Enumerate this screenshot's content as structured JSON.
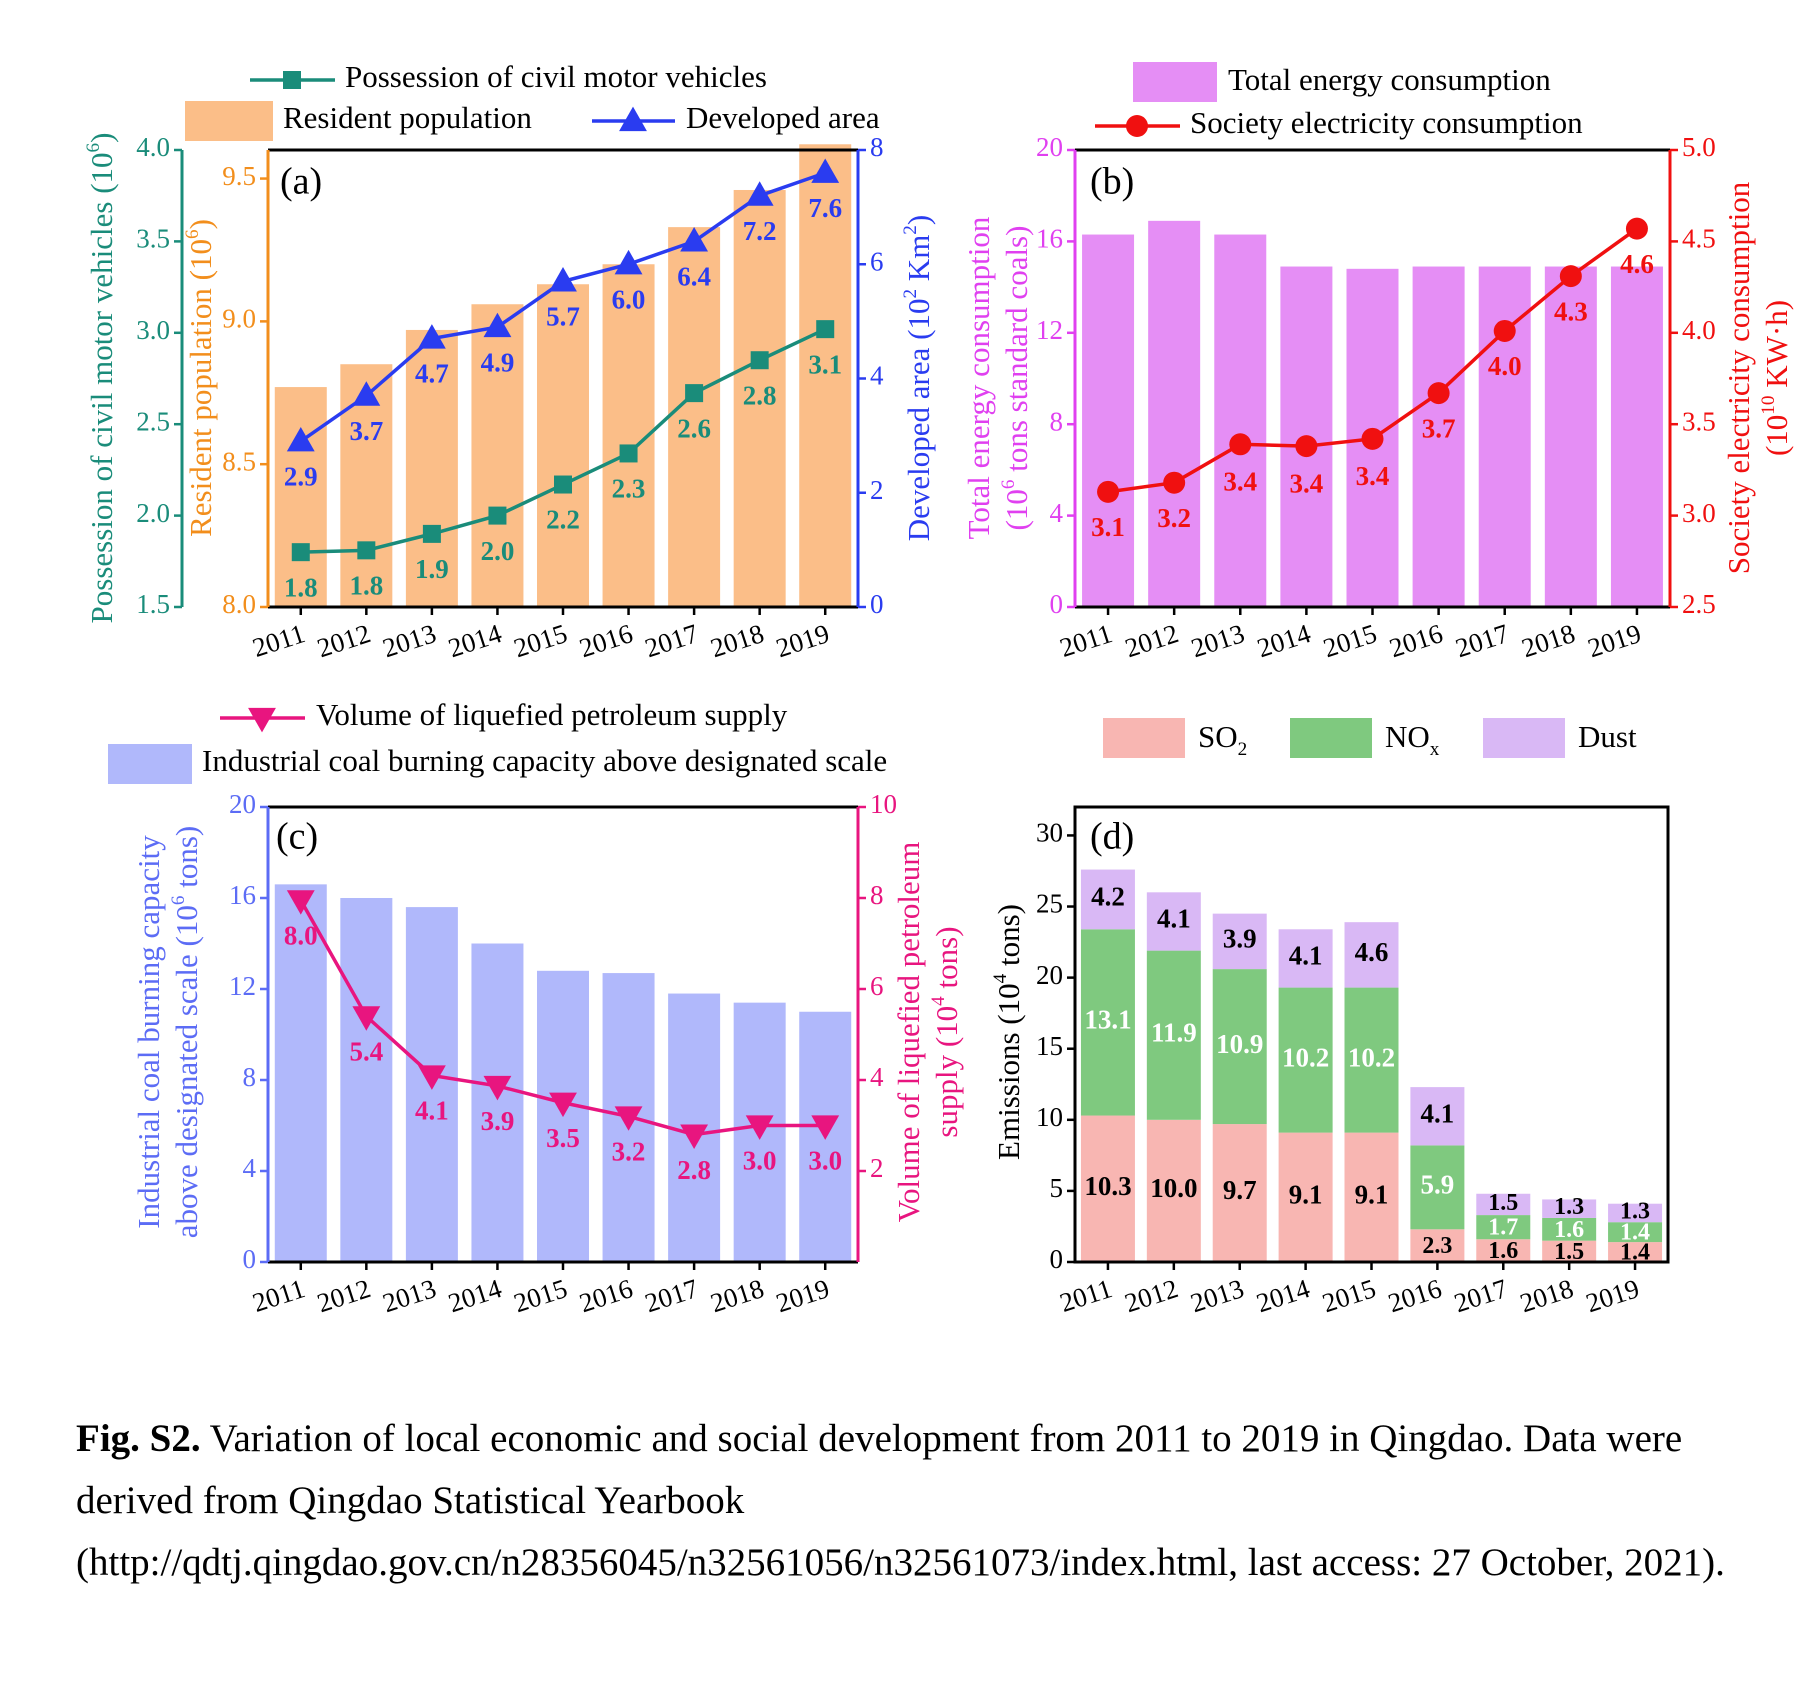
{
  "chart_data": [
    {
      "panel": "(a)",
      "type": "bar",
      "categories": [
        "2011",
        "2012",
        "2013",
        "2014",
        "2015",
        "2016",
        "2017",
        "2018",
        "2019"
      ],
      "series": [
        {
          "name": "Resident population",
          "kind": "bar",
          "axis": "left_inner",
          "color": "#fbbe88",
          "values": [
            8.77,
            8.85,
            8.97,
            9.06,
            9.13,
            9.2,
            9.33,
            9.46,
            9.62
          ]
        },
        {
          "name": "Possession of civil motor vehicles",
          "kind": "line",
          "marker": "square",
          "axis": "left_outer",
          "color": "#1a8c7a",
          "values": [
            1.8,
            1.8,
            1.9,
            2.0,
            2.2,
            2.3,
            2.6,
            2.8,
            3.1
          ],
          "plot_values": [
            1.8,
            1.81,
            1.9,
            2.0,
            2.17,
            2.34,
            2.67,
            2.85,
            3.02
          ]
        },
        {
          "name": "Developed area",
          "kind": "line",
          "marker": "triangle-up",
          "axis": "right",
          "color": "#2a3cf0",
          "values": [
            2.9,
            3.7,
            4.7,
            4.9,
            5.7,
            6.0,
            6.4,
            7.2,
            7.6
          ]
        }
      ],
      "axes": {
        "left_outer": {
          "label": "Possession of civil motor vehicles (10",
          "sup": "6",
          "tail": ")",
          "ylim": [
            1.5,
            4.0
          ],
          "ticks": [
            "1.5",
            "2.0",
            "2.5",
            "3.0",
            "3.5",
            "4.0"
          ],
          "color": "#1a8c7a"
        },
        "left_inner": {
          "label": "Resident population (10",
          "sup": "6",
          "tail": ")",
          "ylim": [
            8.0,
            9.6
          ],
          "ticks": [
            "8.0",
            "8.5",
            "9.0",
            "9.5"
          ],
          "color": "#f28e1c"
        },
        "right": {
          "label": "Developed area (10",
          "sup": "2",
          "tail": " Km",
          "sup2": "2",
          "tail2": ")",
          "ylim": [
            0,
            8
          ],
          "ticks": [
            "0",
            "2",
            "4",
            "6",
            "8"
          ],
          "color": "#2a3cf0"
        }
      },
      "legend": {
        "placement": "top"
      }
    },
    {
      "panel": "(b)",
      "type": "bar",
      "categories": [
        "2011",
        "2012",
        "2013",
        "2014",
        "2015",
        "2016",
        "2017",
        "2018",
        "2019"
      ],
      "series": [
        {
          "name": "Total energy consumption",
          "kind": "bar",
          "axis": "left",
          "color": "#e58ef5",
          "values": [
            16.3,
            16.9,
            16.3,
            14.9,
            14.8,
            14.9,
            14.9,
            14.9,
            14.9
          ]
        },
        {
          "name": "Society electricity consumption",
          "kind": "line",
          "marker": "circle",
          "axis": "right",
          "color": "#f01010",
          "values": [
            3.1,
            3.2,
            3.4,
            3.4,
            3.4,
            3.7,
            4.0,
            4.3,
            4.6
          ],
          "plot_values": [
            3.13,
            3.18,
            3.39,
            3.38,
            3.42,
            3.67,
            4.01,
            4.31,
            4.57
          ]
        }
      ],
      "axes": {
        "left": {
          "label_line1": "Total energy consumption",
          "label_line2": "(10",
          "sup": "6",
          "tail": " tons standard coals)",
          "ylim": [
            0,
            20
          ],
          "ticks": [
            "0",
            "4",
            "8",
            "12",
            "16",
            "20"
          ],
          "color": "#e040f0"
        },
        "right": {
          "label_line1": "Society electricity consumption",
          "label_line2": "(10",
          "sup": "10",
          "tail": " KW·h)",
          "ylim": [
            2.5,
            5.0
          ],
          "ticks": [
            "2.5",
            "3.0",
            "3.5",
            "4.0",
            "4.5",
            "5.0"
          ],
          "color": "#f01010"
        }
      },
      "legend": {
        "placement": "top"
      }
    },
    {
      "panel": "(c)",
      "type": "bar",
      "categories": [
        "2011",
        "2012",
        "2013",
        "2014",
        "2015",
        "2016",
        "2017",
        "2018",
        "2019"
      ],
      "series": [
        {
          "name": "Industrial coal burning capacity above designated scale",
          "kind": "bar",
          "axis": "left",
          "color": "#b0b8fb",
          "values": [
            16.6,
            16.0,
            15.6,
            14.0,
            12.8,
            12.7,
            11.8,
            11.4,
            11.0
          ]
        },
        {
          "name": "Volume of liquefied petroleum supply",
          "kind": "line",
          "marker": "triangle-down",
          "axis": "right",
          "color": "#e8157f",
          "values": [
            8.0,
            5.4,
            4.1,
            3.9,
            3.5,
            3.2,
            2.8,
            3.0,
            3.0
          ],
          "plot_values": [
            7.95,
            5.4,
            4.1,
            3.87,
            3.5,
            3.2,
            2.8,
            3.0,
            3.0
          ]
        }
      ],
      "axes": {
        "left": {
          "label_line1": "Industrial coal burning capacity",
          "label_line2": "above designated scale (10",
          "sup": "6",
          "tail": " tons)",
          "ylim": [
            0,
            20
          ],
          "ticks": [
            "0",
            "4",
            "8",
            "12",
            "16",
            "20"
          ],
          "color": "#5c6cf5"
        },
        "right": {
          "label_line1": "Volume of liquefied petroleum",
          "label_line2": "supply (10",
          "sup": "4",
          "tail": " tons)",
          "ylim": [
            0,
            10
          ],
          "ticks": [
            "2",
            "4",
            "6",
            "8",
            "10"
          ],
          "color": "#e8157f"
        }
      },
      "legend": {
        "placement": "top"
      }
    },
    {
      "panel": "(d)",
      "type": "bar",
      "stacked": true,
      "categories": [
        "2011",
        "2012",
        "2013",
        "2014",
        "2015",
        "2016",
        "2017",
        "2018",
        "2019"
      ],
      "series": [
        {
          "name": "SO",
          "sub": "2",
          "color": "#f8b6b2",
          "values": [
            10.3,
            10.0,
            9.7,
            9.1,
            9.1,
            2.3,
            1.6,
            1.5,
            1.4
          ],
          "labels": [
            "10.3",
            "10.0",
            "9.7",
            "9.1",
            "9.1",
            "2.3",
            "1.6",
            "1.5",
            "1.4"
          ],
          "label_color": "#000000"
        },
        {
          "name": "NO",
          "sub": "x",
          "color": "#7fc97f",
          "values": [
            13.1,
            11.9,
            10.9,
            10.2,
            10.2,
            5.9,
            1.7,
            1.6,
            1.4
          ],
          "labels": [
            "13.1",
            "11.9",
            "10.9",
            "10.2",
            "10.2",
            "5.9",
            "1.7",
            "1.6",
            "1.4"
          ],
          "label_color": "#ffffff"
        },
        {
          "name": "Dust",
          "sub": "",
          "color": "#d9b8f5",
          "values": [
            4.2,
            4.1,
            3.9,
            4.1,
            4.6,
            4.1,
            1.5,
            1.3,
            1.3
          ],
          "labels": [
            "4.2",
            "4.1",
            "3.9",
            "4.1",
            "4.6",
            "4.1",
            "1.5",
            "1.3",
            "1.3"
          ],
          "label_color": "#000000"
        }
      ],
      "axes": {
        "left": {
          "label": "Emissions (10",
          "sup": "4",
          "tail": " tons)",
          "ylim": [
            0,
            32
          ],
          "ticks": [
            "0",
            "5",
            "10",
            "15",
            "20",
            "25",
            "30"
          ],
          "color": "#000000"
        }
      },
      "legend": {
        "placement": "top"
      }
    }
  ],
  "caption": {
    "prefix": "Fig. S2.",
    "text": " Variation of local economic and social development from 2011 to 2019 in Qingdao. Data were derived from Qingdao Statistical Yearbook (http://qdtj.qingdao.gov.cn/n28356045/n32561056/n32561073/index.html, last access: 27 October, 2021)."
  }
}
